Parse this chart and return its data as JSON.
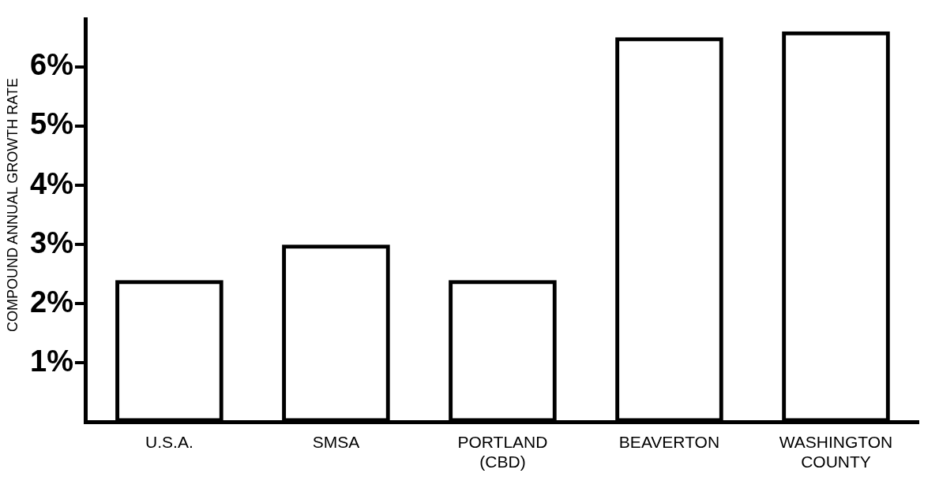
{
  "chart_data": {
    "type": "bar",
    "ylabel": "COMPOUND ANNUAL GROWTH RATE",
    "categories": [
      "U.S.A.",
      "SMSA",
      "PORTLAND\n(CBD)",
      "BEAVERTON",
      "WASHINGTON\nCOUNTY"
    ],
    "values": [
      2.4,
      3.0,
      2.4,
      6.5,
      6.6
    ],
    "color": "#000000",
    "ylim": [
      0,
      6.8
    ],
    "yticks": [
      {
        "value": 1,
        "label": "1%"
      },
      {
        "value": 2,
        "label": "2%"
      },
      {
        "value": 3,
        "label": "3%"
      },
      {
        "value": 4,
        "label": "4%"
      },
      {
        "value": 5,
        "label": "5%"
      },
      {
        "value": 6,
        "label": "6%"
      }
    ],
    "grid": false,
    "legend": false
  }
}
